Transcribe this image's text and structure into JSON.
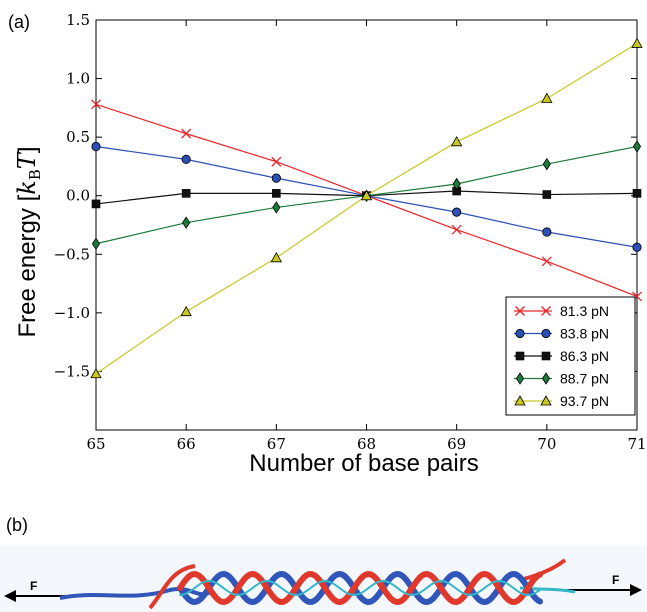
{
  "panels": {
    "a": "(a)",
    "b": "(b)"
  },
  "chart_data": {
    "type": "line",
    "title": "",
    "xlabel": "Number of base pairs",
    "ylabel_prefix": "Free energy [",
    "ylabel_k": "k",
    "ylabel_sub": "B",
    "ylabel_T": "T",
    "ylabel_suffix": "]",
    "xlim": [
      65,
      71
    ],
    "ylim": [
      -2.0,
      1.5
    ],
    "x_ticks": [
      65,
      66,
      67,
      68,
      69,
      70,
      71
    ],
    "y_ticks": [
      1.5,
      1.0,
      0.5,
      0.0,
      -0.5,
      -1.0,
      -1.5
    ],
    "y_tick_labels": [
      "1.5",
      "1.0",
      "0.5",
      "0.0",
      "−0.5",
      "−1.0",
      "−1.5"
    ],
    "x": [
      65,
      66,
      67,
      68,
      69,
      70,
      71
    ],
    "grid": false,
    "legend_position": "lower-right",
    "series": [
      {
        "name": "81.3 pN",
        "color": "#e8262a",
        "marker": "x",
        "values": [
          0.78,
          0.53,
          0.29,
          0.0,
          -0.29,
          -0.56,
          -0.86
        ]
      },
      {
        "name": "83.8 pN",
        "color": "#2b4fb5",
        "marker": "circle",
        "values": [
          0.42,
          0.31,
          0.15,
          0.0,
          -0.14,
          -0.31,
          -0.44
        ]
      },
      {
        "name": "86.3 pN",
        "color": "#111111",
        "marker": "square",
        "values": [
          -0.07,
          0.02,
          0.02,
          0.0,
          0.04,
          0.01,
          0.02
        ]
      },
      {
        "name": "88.7 pN",
        "color": "#1c7a3a",
        "marker": "diamond",
        "values": [
          -0.41,
          -0.23,
          -0.1,
          0.0,
          0.1,
          0.27,
          0.42
        ]
      },
      {
        "name": "93.7 pN",
        "color": "#c8c81e",
        "marker": "triangle",
        "values": [
          -1.52,
          -0.99,
          -0.53,
          0.0,
          0.46,
          0.83,
          1.3
        ]
      }
    ]
  },
  "helix": {
    "left_force": "F",
    "right_force": "F"
  }
}
